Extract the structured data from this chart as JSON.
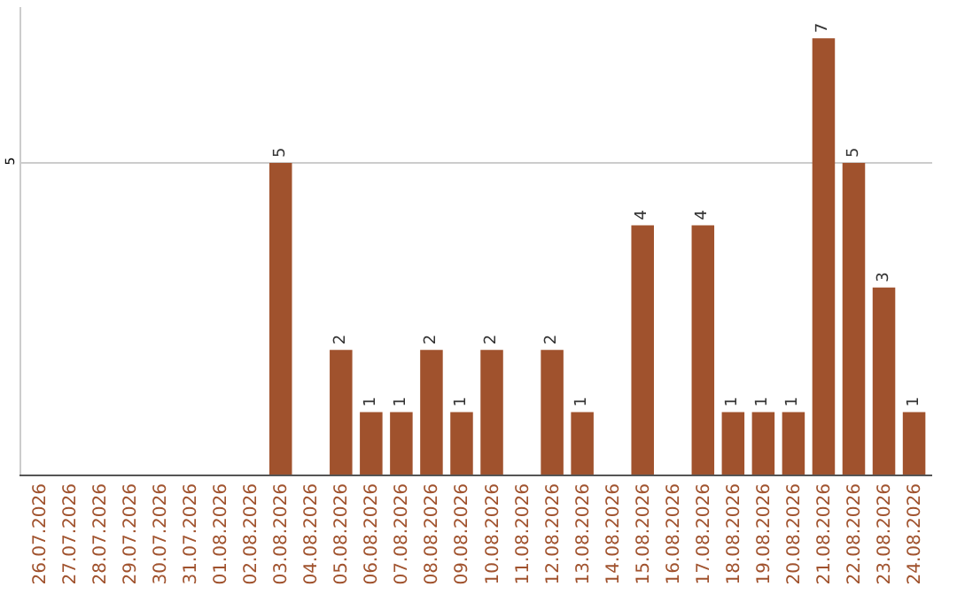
{
  "chart_data": {
    "type": "bar",
    "categories": [
      "26.07.2026",
      "27.07.2026",
      "28.07.2026",
      "29.07.2026",
      "30.07.2026",
      "31.07.2026",
      "01.08.2026",
      "02.08.2026",
      "03.08.2026",
      "04.08.2026",
      "05.08.2026",
      "06.08.2026",
      "07.08.2026",
      "08.08.2026",
      "09.08.2026",
      "10.08.2026",
      "11.08.2026",
      "12.08.2026",
      "13.08.2026",
      "14.08.2026",
      "15.08.2026",
      "16.08.2026",
      "17.08.2026",
      "18.08.2026",
      "19.08.2026",
      "20.08.2026",
      "21.08.2026",
      "22.08.2026",
      "23.08.2026",
      "24.08.2026"
    ],
    "values": [
      0,
      0,
      0,
      0,
      0,
      0,
      0,
      0,
      5,
      0,
      2,
      1,
      1,
      2,
      1,
      2,
      0,
      2,
      1,
      0,
      4,
      0,
      4,
      1,
      1,
      1,
      7,
      5,
      3,
      1
    ],
    "value_labels": [
      null,
      null,
      null,
      null,
      null,
      null,
      null,
      null,
      "5",
      null,
      "2",
      "1",
      "1",
      "2",
      "1",
      "2",
      null,
      "2",
      "1",
      null,
      "4",
      null,
      "4",
      "1",
      "1",
      "1",
      "7",
      "5",
      "3",
      "1"
    ],
    "color": "#a0522d",
    "ylim": [
      0,
      7.5
    ],
    "yticks": [
      5
    ],
    "grid": "y"
  }
}
